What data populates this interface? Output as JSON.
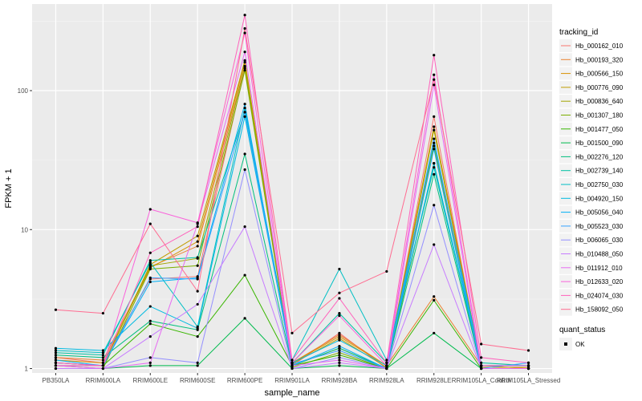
{
  "chart_data": {
    "type": "line",
    "xlabel": "sample_name",
    "ylabel": "FPKM + 1",
    "y_scale": "log10",
    "ylim": [
      0.93,
      420
    ],
    "y_ticks": [
      {
        "value": 1,
        "label": "1"
      },
      {
        "value": 10,
        "label": "10"
      },
      {
        "value": 100,
        "label": "100"
      }
    ],
    "grid": true,
    "categories": [
      "PB350LA",
      "RRIM600LA",
      "RRIM600LE",
      "RRIM600SE",
      "RRIM600PE",
      "RRIM901LA",
      "RRIM928BA",
      "RRIM928LA",
      "RRIM928LE",
      "RRIM105LA_Control",
      "RRIM105LA_Stressed"
    ],
    "legend": {
      "position": "right",
      "title": "tracking_id",
      "shape_title": "quant_status",
      "shape_entries": [
        "OK"
      ]
    },
    "series": [
      {
        "name": "Hb_000162_010",
        "color": "#F8766D",
        "values": [
          1.2,
          1.1,
          4.4,
          4.6,
          145,
          1.05,
          1.8,
          1.0,
          65,
          1.0,
          1.0
        ]
      },
      {
        "name": "Hb_000193_320",
        "color": "#EA8331",
        "values": [
          1.2,
          1.15,
          5.4,
          7.6,
          150,
          1.1,
          1.75,
          1.05,
          3.3,
          1.05,
          1.0
        ]
      },
      {
        "name": "Hb_000566_150",
        "color": "#D89000",
        "values": [
          1.15,
          1.1,
          5.3,
          8.2,
          160,
          1.1,
          1.7,
          1.05,
          55,
          1.05,
          1.05
        ]
      },
      {
        "name": "Hb_000776_090",
        "color": "#C09B00",
        "values": [
          1.1,
          1.05,
          5.6,
          9.0,
          165,
          1.08,
          1.65,
          1.02,
          40,
          1.02,
          1.02
        ]
      },
      {
        "name": "Hb_000836_640",
        "color": "#A3A500",
        "values": [
          1.1,
          1.05,
          5.5,
          6.2,
          150,
          1.05,
          1.4,
          1.0,
          52,
          1.0,
          1.0
        ]
      },
      {
        "name": "Hb_001307_180",
        "color": "#7CAE00",
        "values": [
          1.05,
          1.0,
          5.2,
          5.5,
          140,
          1.02,
          1.3,
          1.0,
          30,
          1.0,
          1.0
        ]
      },
      {
        "name": "Hb_001477_050",
        "color": "#39B600",
        "values": [
          1.05,
          1.05,
          2.1,
          1.7,
          4.7,
          1.05,
          1.25,
          1.0,
          3.1,
          1.0,
          1.0
        ]
      },
      {
        "name": "Hb_001500_090",
        "color": "#00BB4E",
        "values": [
          1.0,
          1.0,
          1.05,
          1.05,
          2.3,
          1.0,
          1.05,
          1.0,
          1.8,
          1.0,
          1.0
        ]
      },
      {
        "name": "Hb_002276_120",
        "color": "#00BF7D",
        "values": [
          1.25,
          1.2,
          2.2,
          1.9,
          35,
          1.05,
          1.4,
          1.0,
          25,
          1.0,
          1.0
        ]
      },
      {
        "name": "Hb_002739_140",
        "color": "#00C1A3",
        "values": [
          1.3,
          1.25,
          6.0,
          6.3,
          70,
          1.1,
          2.5,
          1.1,
          42,
          1.1,
          1.05
        ]
      },
      {
        "name": "Hb_002750_030",
        "color": "#00BFC4",
        "values": [
          1.35,
          1.3,
          5.8,
          2.0,
          75,
          1.15,
          5.2,
          1.15,
          28,
          1.05,
          1.05
        ]
      },
      {
        "name": "Hb_004920_150",
        "color": "#00BAE0",
        "values": [
          1.4,
          1.35,
          2.8,
          1.95,
          65,
          1.1,
          1.6,
          1.05,
          30,
          1.05,
          1.05
        ]
      },
      {
        "name": "Hb_005056_040",
        "color": "#00B0F6",
        "values": [
          1.15,
          1.05,
          4.2,
          4.5,
          80,
          1.05,
          1.45,
          1.0,
          38,
          1.0,
          1.0
        ]
      },
      {
        "name": "Hb_005523_030",
        "color": "#35A2FF",
        "values": [
          1.1,
          1.05,
          4.5,
          4.4,
          70,
          1.08,
          1.35,
          1.0,
          45,
          1.0,
          1.1
        ]
      },
      {
        "name": "Hb_006065_030",
        "color": "#9590FF",
        "values": [
          1.0,
          1.0,
          1.2,
          1.1,
          27,
          1.0,
          1.2,
          1.0,
          15,
          1.0,
          1.0
        ]
      },
      {
        "name": "Hb_010488_050",
        "color": "#C77CFF",
        "values": [
          1.0,
          1.0,
          1.7,
          2.9,
          10.5,
          1.0,
          1.1,
          1.0,
          7.8,
          1.0,
          1.0
        ]
      },
      {
        "name": "Hb_011912_010",
        "color": "#E76BF3",
        "values": [
          1.05,
          1.0,
          1.1,
          11.0,
          190,
          1.05,
          1.15,
          1.0,
          110,
          1.0,
          1.0
        ]
      },
      {
        "name": "Hb_012633_020",
        "color": "#FA62DB",
        "values": [
          1.05,
          1.05,
          14.0,
          11.2,
          260,
          1.1,
          2.4,
          1.05,
          130,
          1.05,
          1.05
        ]
      },
      {
        "name": "Hb_024074_030",
        "color": "#FF62BC",
        "values": [
          1.1,
          1.05,
          6.8,
          10.5,
          350,
          1.15,
          3.2,
          1.1,
          180,
          1.2,
          1.1
        ]
      },
      {
        "name": "Hb_158092_050",
        "color": "#FF6C91",
        "values": [
          2.65,
          2.5,
          11.0,
          3.6,
          280,
          1.8,
          3.5,
          5.0,
          120,
          1.5,
          1.35
        ]
      }
    ]
  }
}
